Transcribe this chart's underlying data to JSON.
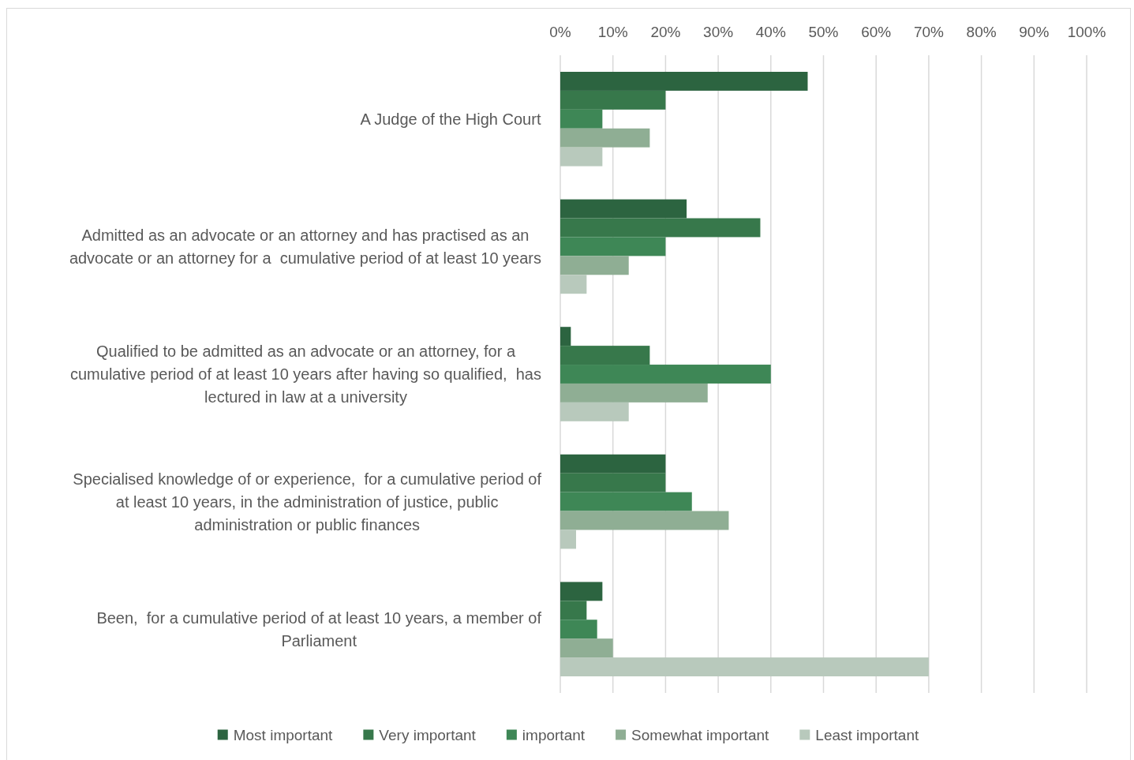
{
  "chart_data": {
    "type": "bar",
    "orientation": "horizontal",
    "categories": [
      "A Judge of the High Court",
      "Admitted as an advocate or an attorney and has practised as an advocate or an attorney for a  cumulative period of at least 10 years",
      "Qualified to be admitted as an advocate or an attorney, for a cumulative period of at least 10 years after having so qualified,  has lectured in law at a university",
      "Specialised knowledge of or experience,  for a cumulative period of at least 10 years, in the administration of justice, public administration or public finances",
      "Been,  for a cumulative period of at least 10 years, a member of Parliament"
    ],
    "series": [
      {
        "name": "Most important",
        "color": "#2c6440",
        "values": [
          47,
          24,
          2,
          20,
          8
        ]
      },
      {
        "name": "Very important",
        "color": "#37784b",
        "values": [
          20,
          38,
          17,
          20,
          5
        ]
      },
      {
        "name": "important",
        "color": "#3e8756",
        "values": [
          8,
          20,
          40,
          25,
          7
        ]
      },
      {
        "name": "Somewhat important",
        "color": "#8fae94",
        "values": [
          17,
          13,
          28,
          32,
          10
        ]
      },
      {
        "name": "Least important",
        "color": "#b8c9bc",
        "values": [
          8,
          5,
          13,
          3,
          70
        ]
      }
    ],
    "xlim": [
      0,
      100
    ],
    "xticks": [
      {
        "value": 0,
        "label": "0%"
      },
      {
        "value": 10,
        "label": "10%"
      },
      {
        "value": 20,
        "label": "20%"
      },
      {
        "value": 30,
        "label": "30%"
      },
      {
        "value": 40,
        "label": "40%"
      },
      {
        "value": 50,
        "label": "50%"
      },
      {
        "value": 60,
        "label": "60%"
      },
      {
        "value": 70,
        "label": "70%"
      },
      {
        "value": 80,
        "label": "80%"
      },
      {
        "value": 90,
        "label": "90%"
      },
      {
        "value": 100,
        "label": "100%"
      }
    ],
    "grid": "x",
    "legend": "bottom"
  }
}
